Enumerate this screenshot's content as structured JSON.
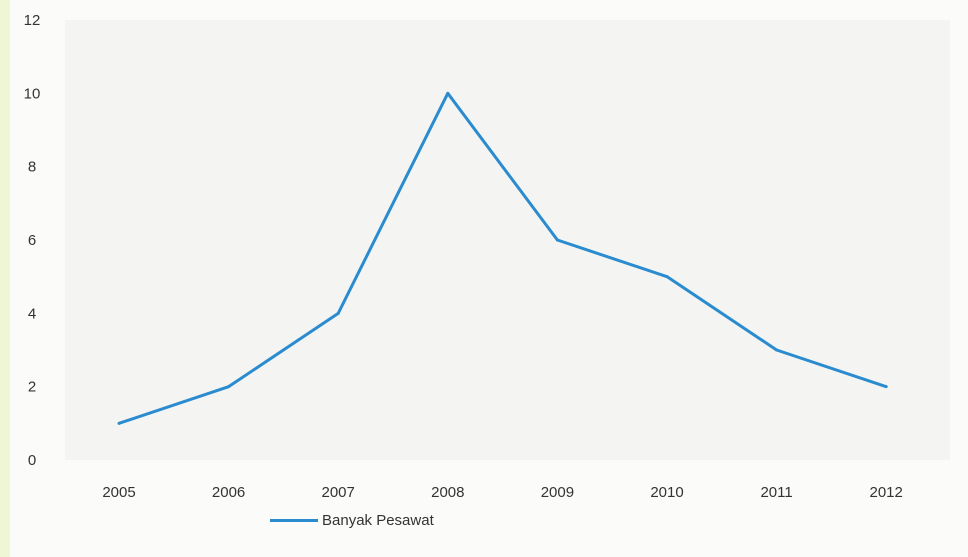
{
  "chart_data": {
    "type": "line",
    "categories": [
      "2005",
      "2006",
      "2007",
      "2008",
      "2009",
      "2010",
      "2011",
      "2012"
    ],
    "series": [
      {
        "name": "Banyak Pesawat",
        "values": [
          1,
          2,
          4,
          10,
          6,
          5,
          3,
          2
        ]
      }
    ],
    "title": "",
    "xlabel": "",
    "ylabel": "",
    "ylim": [
      0,
      12
    ],
    "yticks": [
      0,
      2,
      4,
      6,
      8,
      10,
      12
    ],
    "grid": false,
    "legend_position": "bottom-left",
    "colors": {
      "line": "#2a8bcf",
      "plot_bg": "#f4f5f3"
    }
  }
}
